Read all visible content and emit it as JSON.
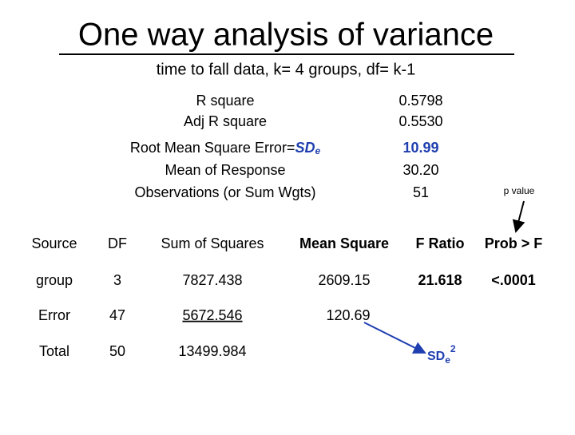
{
  "title": "One way analysis of variance",
  "subtitle": "time to fall data,  k= 4 groups,  df= k-1",
  "summary": {
    "rows": [
      {
        "label": "R square",
        "value": "0.5798"
      },
      {
        "label": "Adj R square",
        "value": "0.5530"
      },
      {
        "label": "Root Mean Square Error=",
        "symbol": "SD",
        "subscript": "e",
        "value": "10.99"
      },
      {
        "label": "Mean of Response",
        "value": "30.20"
      },
      {
        "label": "Observations (or Sum Wgts)",
        "value": "51"
      }
    ]
  },
  "table": {
    "header": [
      "Source",
      "DF",
      "Sum of Squares",
      "Mean Square",
      "F Ratio",
      "Prob > F"
    ],
    "rows": [
      [
        "group",
        "3",
        "7827.438",
        "2609.15",
        "21.618",
        "<.0001"
      ],
      [
        "Error",
        "47",
        "5672.546",
        "120.69"
      ],
      [
        "Total",
        "50",
        "13499.984"
      ]
    ]
  },
  "annotations": {
    "p_value": "p value",
    "sd_squared": {
      "symbol": "SD",
      "subscript": "e",
      "superscript": "2"
    }
  }
}
